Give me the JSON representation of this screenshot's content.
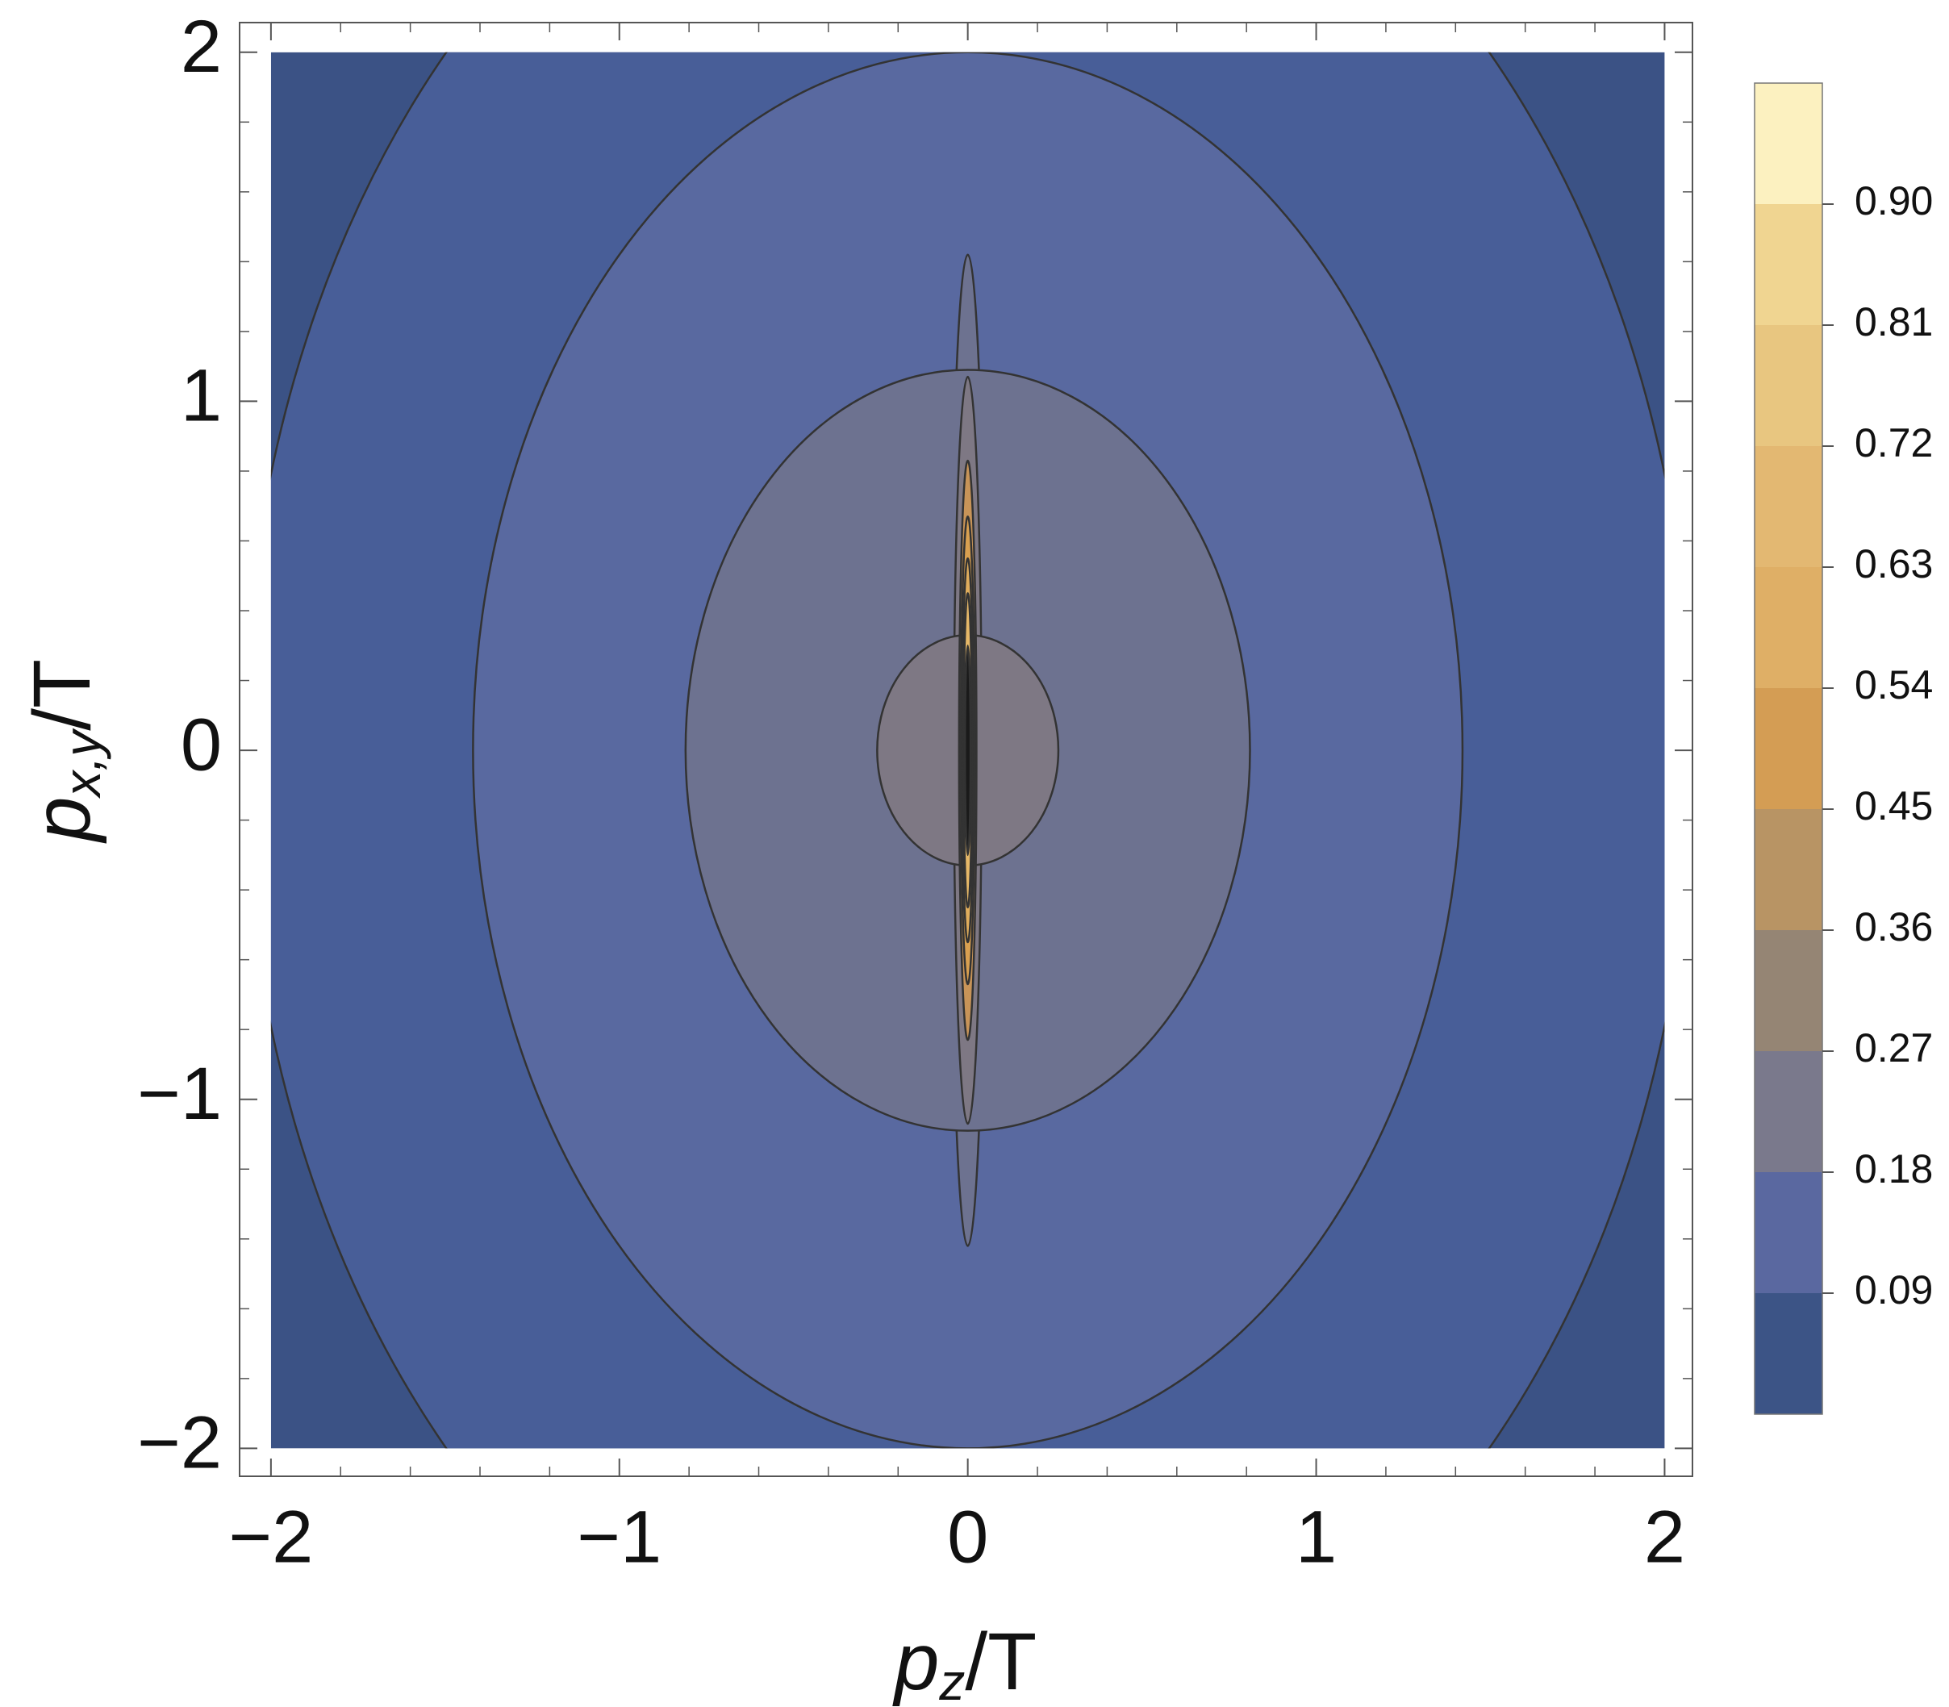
{
  "chart_data": {
    "type": "contour",
    "xlabel": {
      "main": "p",
      "sub": "z",
      "tail": "/T"
    },
    "ylabel": {
      "main": "p",
      "sub": "x,y",
      "tail": "/T"
    },
    "xlim": [
      -2.09,
      2.08
    ],
    "ylim": [
      -2.08,
      2.085
    ],
    "domain": [
      -2,
      2
    ],
    "background_color": "#3b5285",
    "xticks": [
      {
        "value": -2,
        "label": "−2"
      },
      {
        "value": -1,
        "label": "−1"
      },
      0,
      1,
      2
    ],
    "yticks": [
      {
        "value": -2,
        "label": "−2"
      },
      {
        "value": -1,
        "label": "−1"
      },
      0,
      1,
      2
    ],
    "xminorticks": [
      -1.8,
      -1.6,
      -1.4,
      -1.2,
      -0.8,
      -0.6,
      -0.4,
      -0.2,
      0.2,
      0.4,
      0.6,
      0.8,
      1.2,
      1.4,
      1.6,
      1.8
    ],
    "yminorticks": [
      -1.8,
      -1.6,
      -1.4,
      -1.2,
      -0.8,
      -0.6,
      -0.4,
      -0.2,
      0.2,
      0.4,
      0.6,
      0.8,
      1.2,
      1.4,
      1.6,
      1.8
    ],
    "contours": [
      {
        "level": 0.06,
        "color": "#485e98",
        "rx": 2.08,
        "ry": 2.88
      },
      {
        "level": 0.12,
        "color": "#5969a0",
        "rx": 1.42,
        "ry": 2.0
      },
      {
        "level": 0.18,
        "color": "#6d7290",
        "rx": 0.05,
        "ry": 1.42
      },
      {
        "level": 0.18,
        "color": "#6d7290",
        "rx": 0.81,
        "ry": 1.09
      },
      {
        "level": 0.24,
        "color": "#7e7884",
        "rx": 0.04,
        "ry": 1.07
      },
      {
        "level": 0.24,
        "color": "#7e7884",
        "rx": 0.26,
        "ry": 0.33
      },
      {
        "level": 0.45,
        "color": "#c89458",
        "rx": 0.025,
        "ry": 0.83
      },
      {
        "level": 0.54,
        "color": "#d9a050",
        "rx": 0.02,
        "ry": 0.67
      },
      {
        "level": 0.63,
        "color": "#e0ad5c",
        "rx": 0.016,
        "ry": 0.55
      },
      {
        "level": 0.72,
        "color": "#e6b868",
        "rx": 0.012,
        "ry": 0.45
      },
      {
        "level": 0.9,
        "color": "#1a1a1a",
        "rx": 0.008,
        "ry": 0.3
      }
    ],
    "colorbar_lim": [
      0,
      0.99
    ],
    "colorbar_ticks": [
      0.09,
      0.18,
      0.27,
      0.36,
      0.45,
      0.54,
      0.63,
      0.72,
      0.81,
      {
        "value": 0.9,
        "label": "0.90"
      }
    ],
    "colorbar_colors": [
      "#3c5486",
      "#5a68a0",
      "#7a798c",
      "#958574",
      "#b89464",
      "#d49d54",
      "#dfaf66",
      "#e3b872",
      "#e8c680",
      "#f0d591",
      "#fcf1c0"
    ]
  }
}
